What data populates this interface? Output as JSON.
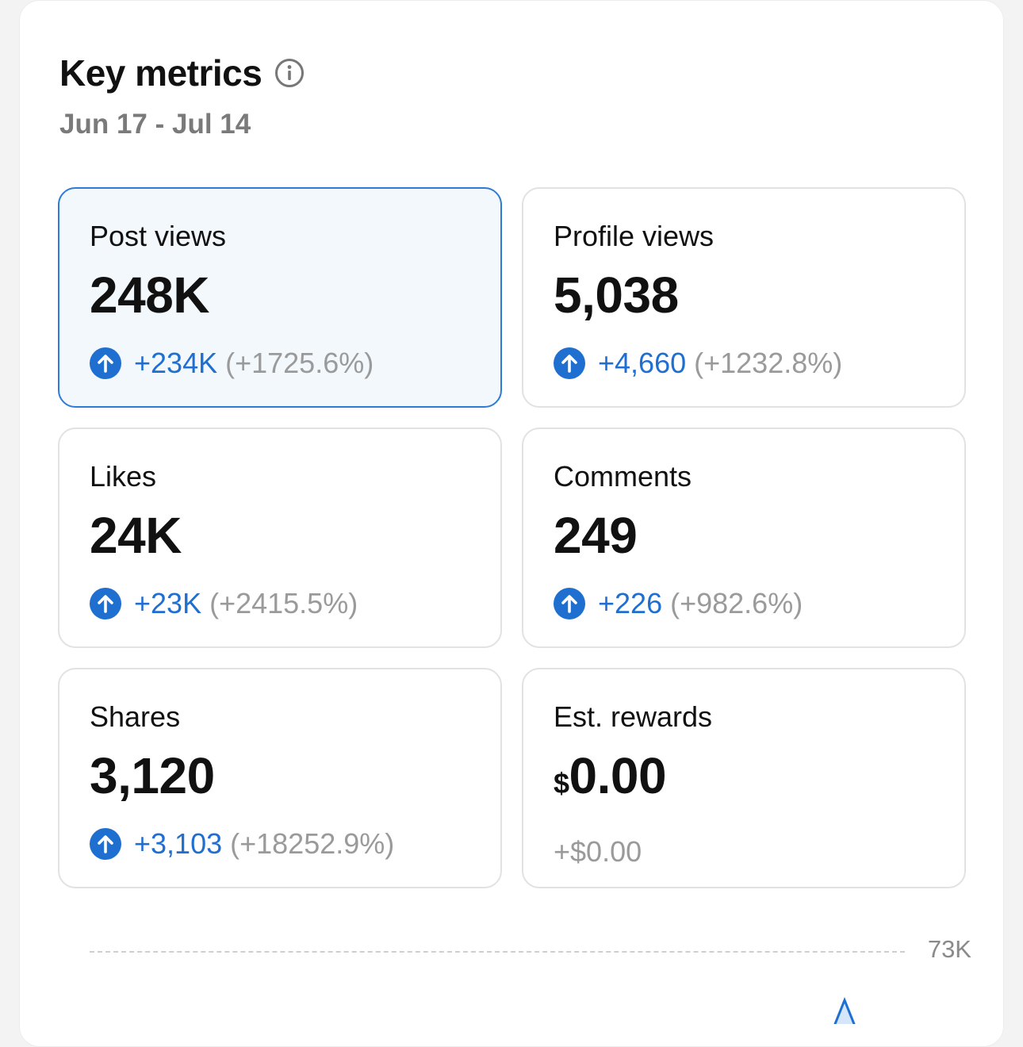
{
  "header": {
    "title": "Key metrics",
    "date_range": "Jun 17 - Jul 14"
  },
  "icons": {
    "info": "info-circle-icon",
    "increase": "arrow-up-circle-icon"
  },
  "colors": {
    "accent": "#1f6fd1",
    "selected_border": "#2e7bd4",
    "selected_bg": "#f3f8fc",
    "muted": "#9a9a9a"
  },
  "metrics": [
    {
      "label": "Post views",
      "value": "248K",
      "delta": "+234K",
      "pct": "(+1725.6%)"
    },
    {
      "label": "Profile views",
      "value": "5,038",
      "delta": "+4,660",
      "pct": "(+1232.8%)"
    },
    {
      "label": "Likes",
      "value": "24K",
      "delta": "+23K",
      "pct": "(+2415.5%)"
    },
    {
      "label": "Comments",
      "value": "249",
      "delta": "+226",
      "pct": "(+982.6%)"
    },
    {
      "label": "Shares",
      "value": "3,120",
      "delta": "+3,103",
      "pct": "(+18252.9%)"
    },
    {
      "label": "Est. rewards",
      "currency": "$",
      "value": "0.00",
      "delta": "+$0.00"
    }
  ],
  "chart": {
    "max_label": "73K"
  }
}
